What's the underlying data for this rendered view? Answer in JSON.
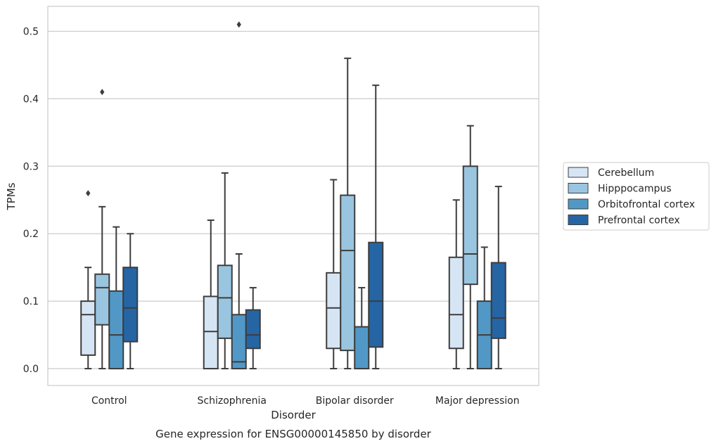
{
  "chart_data": {
    "type": "boxplot",
    "xlabel": "Disorder",
    "ylabel": "TPMs",
    "caption": "Gene expression for ENSG00000145850 by disorder",
    "ylim": [
      -0.025,
      0.537
    ],
    "y_ticks": [
      0.0,
      0.1,
      0.2,
      0.3,
      0.4,
      0.5
    ],
    "y_tick_labels": [
      "0.0",
      "0.1",
      "0.2",
      "0.3",
      "0.4",
      "0.5"
    ],
    "grid": "horizontal",
    "legend_position": "right",
    "categories": [
      "Control",
      "Schizophrenia",
      "Bipolar disorder",
      "Major depression"
    ],
    "series": [
      {
        "name": "Cerebellum",
        "color": "#d6e5f4",
        "boxes": [
          {
            "whislo": 0.0,
            "q1": 0.02,
            "med": 0.08,
            "q3": 0.1,
            "whishi": 0.15,
            "fliers": [
              0.26
            ]
          },
          {
            "whislo": 0.0,
            "q1": 0.0,
            "med": 0.055,
            "q3": 0.107,
            "whishi": 0.22,
            "fliers": []
          },
          {
            "whislo": 0.0,
            "q1": 0.03,
            "med": 0.09,
            "q3": 0.142,
            "whishi": 0.28,
            "fliers": []
          },
          {
            "whislo": 0.0,
            "q1": 0.03,
            "med": 0.08,
            "q3": 0.165,
            "whishi": 0.25,
            "fliers": []
          }
        ]
      },
      {
        "name": "Hipppocampus",
        "color": "#9ac5e0",
        "boxes": [
          {
            "whislo": 0.0,
            "q1": 0.065,
            "med": 0.12,
            "q3": 0.14,
            "whishi": 0.24,
            "fliers": [
              0.41
            ]
          },
          {
            "whislo": 0.0,
            "q1": 0.045,
            "med": 0.105,
            "q3": 0.153,
            "whishi": 0.29,
            "fliers": []
          },
          {
            "whislo": 0.0,
            "q1": 0.027,
            "med": 0.175,
            "q3": 0.257,
            "whishi": 0.46,
            "fliers": []
          },
          {
            "whislo": 0.0,
            "q1": 0.125,
            "med": 0.17,
            "q3": 0.3,
            "whishi": 0.36,
            "fliers": []
          }
        ]
      },
      {
        "name": "Orbitofrontal cortex",
        "color": "#5298c6",
        "boxes": [
          {
            "whislo": 0.0,
            "q1": 0.0,
            "med": 0.05,
            "q3": 0.115,
            "whishi": 0.21,
            "fliers": []
          },
          {
            "whislo": 0.0,
            "q1": 0.0,
            "med": 0.01,
            "q3": 0.08,
            "whishi": 0.17,
            "fliers": [
              0.51
            ]
          },
          {
            "whislo": 0.0,
            "q1": 0.0,
            "med": 0.0,
            "q3": 0.062,
            "whishi": 0.12,
            "fliers": []
          },
          {
            "whislo": 0.0,
            "q1": 0.0,
            "med": 0.05,
            "q3": 0.1,
            "whishi": 0.18,
            "fliers": []
          }
        ]
      },
      {
        "name": "Prefrontal cortex",
        "color": "#2565a4",
        "boxes": [
          {
            "whislo": 0.0,
            "q1": 0.04,
            "med": 0.09,
            "q3": 0.15,
            "whishi": 0.2,
            "fliers": []
          },
          {
            "whislo": 0.0,
            "q1": 0.03,
            "med": 0.05,
            "q3": 0.087,
            "whishi": 0.12,
            "fliers": []
          },
          {
            "whislo": 0.0,
            "q1": 0.032,
            "med": 0.1,
            "q3": 0.187,
            "whishi": 0.42,
            "fliers": []
          },
          {
            "whislo": 0.0,
            "q1": 0.045,
            "med": 0.075,
            "q3": 0.157,
            "whishi": 0.27,
            "fliers": []
          }
        ]
      }
    ]
  }
}
